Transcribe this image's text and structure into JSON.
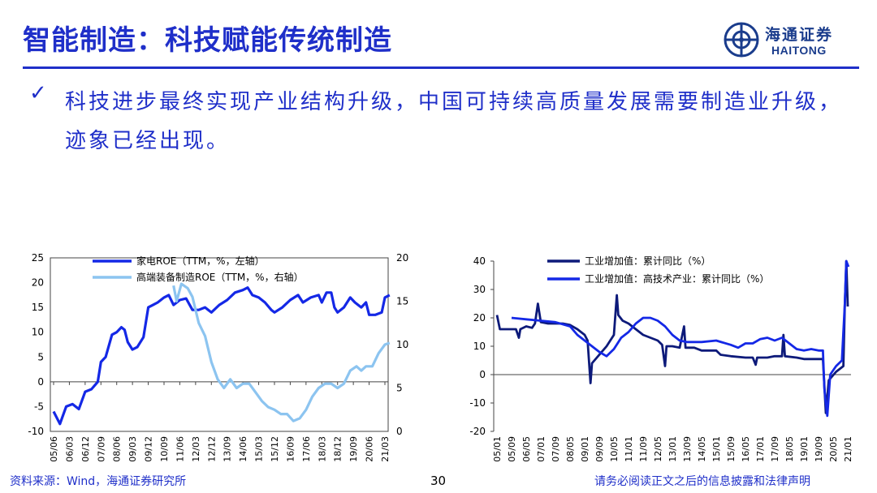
{
  "header": {
    "title": "智能制造：科技赋能传统制造",
    "logo_cn": "海通证券",
    "logo_en": "HAITONG"
  },
  "bullet": {
    "check_icon": "check-icon",
    "text": "科技进步最终实现产业结构升级，中国可持续高质量发展需要制造业升级，迹象已经出现。"
  },
  "footer": {
    "source": "资料来源：Wind，海通证券研究所",
    "page": "30",
    "disclaimer": "请务必阅读正文之后的信息披露和法律声明"
  },
  "colors": {
    "accent": "#1f2fc9",
    "series_dark": "#0d1a7a",
    "series_blue": "#1428e6",
    "series_light": "#8cc4f0"
  },
  "chart_data": [
    {
      "type": "line",
      "x_labels": [
        "05/06",
        "06/03",
        "06/12",
        "07/09",
        "08/06",
        "09/03",
        "09/12",
        "10/09",
        "11/06",
        "12/03",
        "12/12",
        "13/09",
        "14/06",
        "15/03",
        "15/12",
        "16/09",
        "17/06",
        "18/03",
        "18/12",
        "19/09",
        "20/06",
        "21/03"
      ],
      "ylim_left": [
        -10,
        25
      ],
      "yticks_left": [
        -10,
        -5,
        0,
        5,
        10,
        15,
        20,
        25
      ],
      "ylim_right": [
        0,
        20
      ],
      "yticks_right": [
        0,
        5,
        10,
        15,
        20
      ],
      "legend_position": "top-left",
      "series": [
        {
          "name": "家电ROE（TTM，%，左轴）",
          "axis": "left",
          "color": "#1428e6",
          "points": [
            [
              0,
              -6
            ],
            [
              0.4,
              -8.5
            ],
            [
              0.8,
              -5
            ],
            [
              1.2,
              -4.5
            ],
            [
              1.6,
              -5.5
            ],
            [
              2,
              -2
            ],
            [
              2.4,
              -1.5
            ],
            [
              2.8,
              0
            ],
            [
              3,
              4
            ],
            [
              3.3,
              5
            ],
            [
              3.7,
              9.5
            ],
            [
              4,
              10
            ],
            [
              4.3,
              11
            ],
            [
              4.5,
              10.5
            ],
            [
              4.7,
              8
            ],
            [
              5,
              6.5
            ],
            [
              5.3,
              7
            ],
            [
              5.7,
              9
            ],
            [
              6,
              15
            ],
            [
              6.3,
              15.5
            ],
            [
              6.6,
              16
            ],
            [
              7,
              17
            ],
            [
              7.3,
              17.5
            ],
            [
              7.6,
              15.5
            ],
            [
              8,
              16.5
            ],
            [
              8.4,
              16.8
            ],
            [
              8.8,
              14.5
            ],
            [
              9.2,
              14.5
            ],
            [
              9.6,
              15
            ],
            [
              10,
              14
            ],
            [
              10.5,
              15.5
            ],
            [
              11,
              16.5
            ],
            [
              11.5,
              18
            ],
            [
              12,
              18.5
            ],
            [
              12.3,
              19
            ],
            [
              12.6,
              17.5
            ],
            [
              13,
              17
            ],
            [
              13.4,
              16
            ],
            [
              13.8,
              14.5
            ],
            [
              14,
              14
            ],
            [
              14.5,
              15
            ],
            [
              15,
              16.5
            ],
            [
              15.5,
              17.5
            ],
            [
              15.8,
              16
            ],
            [
              16.3,
              17
            ],
            [
              16.8,
              17.5
            ],
            [
              17,
              16
            ],
            [
              17.3,
              18
            ],
            [
              17.6,
              18
            ],
            [
              17.8,
              15
            ],
            [
              18,
              14
            ],
            [
              18.4,
              15
            ],
            [
              18.8,
              17
            ],
            [
              19.1,
              16
            ],
            [
              19.5,
              15
            ],
            [
              19.8,
              16
            ],
            [
              20,
              13.5
            ],
            [
              20.4,
              13.5
            ],
            [
              20.8,
              14
            ],
            [
              21,
              17
            ],
            [
              21.3,
              17.5
            ]
          ]
        },
        {
          "name": "高端装备制造ROE（TTM，%，右轴）",
          "axis": "right",
          "color": "#8cc4f0",
          "points": [
            [
              7.6,
              16.8
            ],
            [
              7.8,
              15
            ],
            [
              8.1,
              17
            ],
            [
              8.5,
              16.5
            ],
            [
              8.8,
              15.5
            ],
            [
              9.2,
              12.5
            ],
            [
              9.6,
              11
            ],
            [
              10,
              8
            ],
            [
              10.4,
              6
            ],
            [
              10.8,
              5
            ],
            [
              11.2,
              6
            ],
            [
              11.6,
              5
            ],
            [
              12,
              5.5
            ],
            [
              12.4,
              5.5
            ],
            [
              12.8,
              4.5
            ],
            [
              13.2,
              3.5
            ],
            [
              13.6,
              2.8
            ],
            [
              14,
              2.5
            ],
            [
              14.4,
              2
            ],
            [
              14.8,
              2
            ],
            [
              15.2,
              1.2
            ],
            [
              15.6,
              1.5
            ],
            [
              16,
              2.5
            ],
            [
              16.4,
              4
            ],
            [
              16.8,
              5
            ],
            [
              17.2,
              5.5
            ],
            [
              17.6,
              5.5
            ],
            [
              18,
              5
            ],
            [
              18.4,
              5.5
            ],
            [
              18.8,
              7
            ],
            [
              19.2,
              7.5
            ],
            [
              19.5,
              7
            ],
            [
              19.8,
              7.5
            ],
            [
              20.2,
              7.5
            ],
            [
              20.6,
              9
            ],
            [
              21,
              10
            ],
            [
              21.3,
              10.2
            ]
          ]
        }
      ]
    },
    {
      "type": "line",
      "x_labels": [
        "05/01",
        "05/09",
        "06/05",
        "07/01",
        "07/09",
        "08/05",
        "09/01",
        "09/09",
        "10/05",
        "11/01",
        "11/09",
        "12/05",
        "13/01",
        "13/09",
        "14/05",
        "15/01",
        "15/09",
        "16/05",
        "17/01",
        "17/09",
        "18/05",
        "19/01",
        "19/09",
        "20/05",
        "21/01"
      ],
      "ylim": [
        -20,
        40
      ],
      "yticks": [
        -20,
        -10,
        0,
        10,
        20,
        30,
        40
      ],
      "legend_position": "top-left",
      "series": [
        {
          "name": "工业增加值：累计同比（%）",
          "color": "#0d1a7a",
          "points": [
            [
              0,
              21
            ],
            [
              0.2,
              16
            ],
            [
              0.8,
              16
            ],
            [
              1.3,
              16
            ],
            [
              1.5,
              13
            ],
            [
              1.6,
              16
            ],
            [
              2,
              17
            ],
            [
              2.4,
              16.5
            ],
            [
              2.6,
              18
            ],
            [
              2.8,
              25
            ],
            [
              3,
              18.5
            ],
            [
              3.5,
              18
            ],
            [
              4.5,
              18
            ],
            [
              5,
              17.5
            ],
            [
              5.5,
              16
            ],
            [
              6,
              14
            ],
            [
              6.2,
              12
            ],
            [
              6.4,
              -3
            ],
            [
              6.5,
              4
            ],
            [
              7,
              7
            ],
            [
              7.5,
              10
            ],
            [
              8,
              14
            ],
            [
              8.2,
              28
            ],
            [
              8.3,
              21
            ],
            [
              8.6,
              19
            ],
            [
              9,
              18
            ],
            [
              9.5,
              16
            ],
            [
              10,
              14
            ],
            [
              10.5,
              13
            ],
            [
              11,
              12
            ],
            [
              11.3,
              10.5
            ],
            [
              11.5,
              3
            ],
            [
              11.6,
              10
            ],
            [
              12,
              10
            ],
            [
              12.5,
              9.5
            ],
            [
              12.8,
              17
            ],
            [
              12.9,
              9.5
            ],
            [
              13.5,
              9.5
            ],
            [
              14,
              8.5
            ],
            [
              15,
              8.5
            ],
            [
              15.3,
              7
            ],
            [
              16,
              6.5
            ],
            [
              17,
              6
            ],
            [
              17.5,
              6
            ],
            [
              17.7,
              3.5
            ],
            [
              17.8,
              6
            ],
            [
              18.5,
              6
            ],
            [
              19,
              6.5
            ],
            [
              19.5,
              6.5
            ],
            [
              19.6,
              14
            ],
            [
              19.7,
              6.5
            ],
            [
              20.5,
              6
            ],
            [
              21,
              5.5
            ],
            [
              21.5,
              5.5
            ],
            [
              22.3,
              5.5
            ],
            [
              22.4,
              -4
            ],
            [
              22.5,
              -13.5
            ],
            [
              22.7,
              -2
            ],
            [
              23.2,
              1
            ],
            [
              23.7,
              3
            ],
            [
              23.8,
              25
            ],
            [
              23.9,
              40
            ],
            [
              24,
              24
            ]
          ]
        },
        {
          "name": "工业增加值：高技术产业：累计同比（%）",
          "color": "#1428e6",
          "points": [
            [
              1,
              20
            ],
            [
              2,
              19.5
            ],
            [
              3,
              19
            ],
            [
              4,
              18.5
            ],
            [
              5,
              17
            ],
            [
              5.5,
              14
            ],
            [
              6,
              12
            ],
            [
              6.5,
              10
            ],
            [
              7,
              8
            ],
            [
              7.5,
              6.5
            ],
            [
              8,
              9
            ],
            [
              8.5,
              13
            ],
            [
              9,
              15
            ],
            [
              9.5,
              18
            ],
            [
              10,
              20
            ],
            [
              10.5,
              20
            ],
            [
              11,
              19
            ],
            [
              11.5,
              17
            ],
            [
              12,
              14
            ],
            [
              12.5,
              12
            ],
            [
              13,
              11.5
            ],
            [
              13.5,
              11.5
            ],
            [
              14,
              11.5
            ],
            [
              15,
              12
            ],
            [
              16,
              10.5
            ],
            [
              16.5,
              9.5
            ],
            [
              17,
              11
            ],
            [
              17.5,
              11
            ],
            [
              18,
              12.5
            ],
            [
              18.5,
              13
            ],
            [
              19,
              12
            ],
            [
              19.5,
              13
            ],
            [
              20,
              11
            ],
            [
              20.5,
              9
            ],
            [
              21,
              8.5
            ],
            [
              21.5,
              9
            ],
            [
              22,
              8.5
            ],
            [
              22.3,
              8.5
            ],
            [
              22.4,
              -5
            ],
            [
              22.6,
              -14.5
            ],
            [
              22.8,
              0
            ],
            [
              23.2,
              3
            ],
            [
              23.6,
              5
            ],
            [
              23.8,
              25
            ],
            [
              23.9,
              40
            ],
            [
              24.05,
              38
            ]
          ]
        }
      ]
    }
  ]
}
